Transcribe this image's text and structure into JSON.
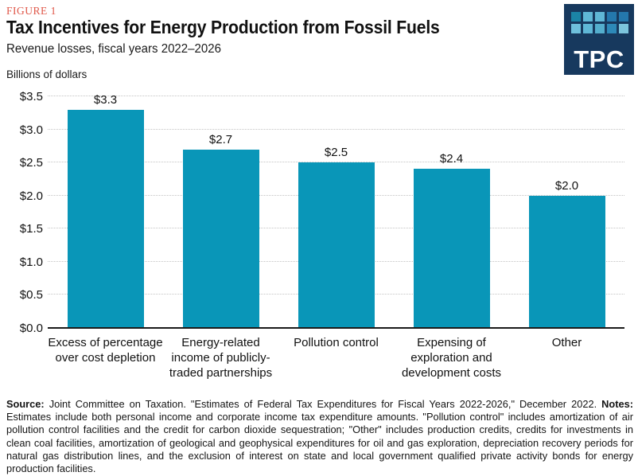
{
  "header": {
    "figure_label": "FIGURE 1",
    "title": "Tax Incentives for Energy Production from Fossil Fuels",
    "subtitle": "Revenue losses, fiscal years 2022–2026",
    "units_label": "Billions of dollars",
    "logo": {
      "text": "TPC",
      "bg_color": "#17395e",
      "square_rows": [
        [
          "#1b84a6",
          "#5fb7d6",
          "#5fb7d6",
          "#2478ad",
          "#2478ad"
        ],
        [
          "#6ec0dc",
          "#5fb7d6",
          "#54aecd",
          "#2d89b8",
          "#7cc5dd"
        ]
      ]
    }
  },
  "chart_data": {
    "type": "bar",
    "title": "Tax Incentives for Energy Production from Fossil Fuels",
    "subtitle": "Revenue losses, fiscal years 2022–2026",
    "ylabel": "Billions of dollars",
    "xlabel": "",
    "categories": [
      "Excess of percentage over cost depletion",
      "Energy-related income of publicly-traded partnerships",
      "Pollution control",
      "Expensing of exploration and development costs",
      "Other"
    ],
    "category_lines": [
      [
        "Excess of percentage",
        "over cost depletion"
      ],
      [
        "Energy-related",
        "income of publicly-",
        "traded partnerships"
      ],
      [
        "Pollution control"
      ],
      [
        "Expensing of",
        "exploration and",
        "development costs"
      ],
      [
        "Other"
      ]
    ],
    "values": [
      3.3,
      2.7,
      2.5,
      2.4,
      2.0
    ],
    "value_labels": [
      "$3.3",
      "$2.7",
      "$2.5",
      "$2.4",
      "$2.0"
    ],
    "ylim": [
      0,
      3.5
    ],
    "y_ticks": [
      {
        "value": 0.0,
        "label": "$0.0"
      },
      {
        "value": 0.5,
        "label": "$0.5"
      },
      {
        "value": 1.0,
        "label": "$1.0"
      },
      {
        "value": 1.5,
        "label": "$1.5"
      },
      {
        "value": 2.0,
        "label": "$2.0"
      },
      {
        "value": 2.5,
        "label": "$2.5"
      },
      {
        "value": 3.0,
        "label": "$3.0"
      },
      {
        "value": 3.5,
        "label": "$3.5"
      }
    ],
    "grid": "horizontal-dotted",
    "legend": null,
    "bar_color": "#0996b8"
  },
  "footer": {
    "source_label": "Source:",
    "source_text": "Joint Committee on Taxation. \"Estimates of Federal Tax Expenditures for Fiscal Years 2022-2026,\" December 2022.",
    "notes_label": "Notes:",
    "notes_text": "Estimates include both personal income and corporate income tax expenditure amounts. \"Pollution control\" includes amortization of air pollution control facilities and the credit for carbon dioxide sequestration; \"Other\" includes production credits, credits for investments in clean coal facilities, amortization of geological and geophysical expenditures for oil and gas exploration, depreciation recovery periods for natural gas distribution lines, and the exclusion of interest on state and local government qualified private activity bonds for energy production facilities."
  },
  "colors": {
    "accent_red": "#e0584a",
    "bar_teal": "#0996b8",
    "gridline": "#c4c4c4",
    "axis": "#1a1a1a",
    "logo_navy": "#17395e"
  }
}
